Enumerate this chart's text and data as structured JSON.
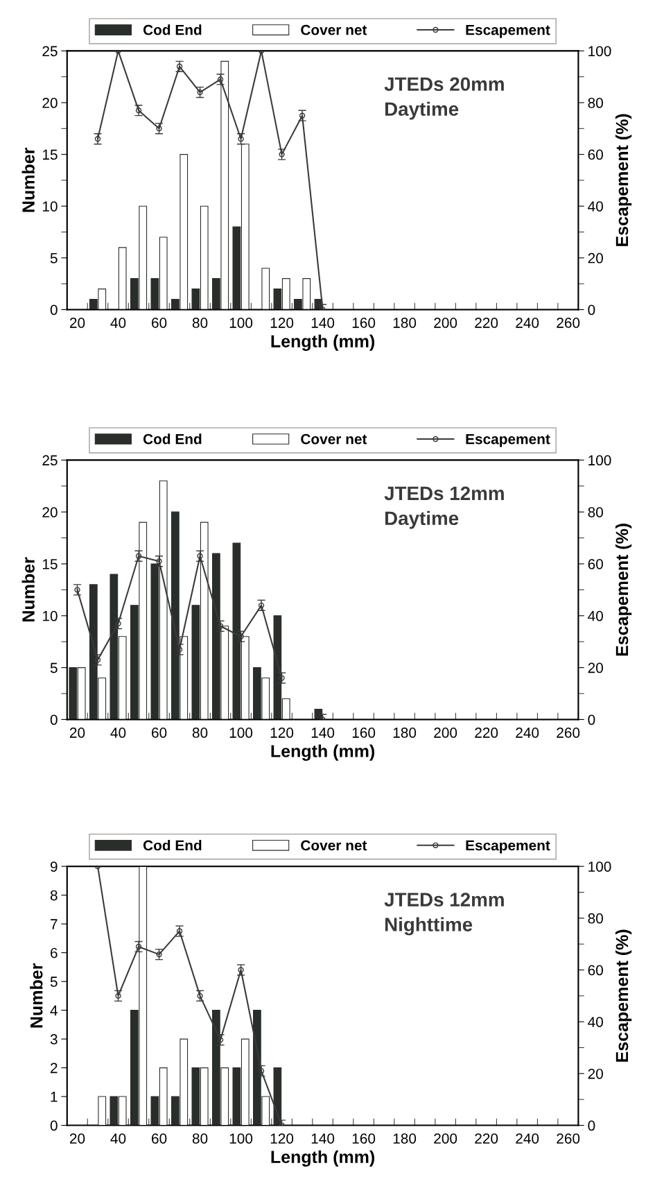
{
  "chart_data": [
    {
      "type": "bar",
      "xlabel": "Length (mm)",
      "ylabel": "Number",
      "y2label": "Escapement (%)",
      "annotations": [
        "JTEDs 20mm\nDaytime"
      ],
      "legend": "top",
      "marker": "circle",
      "line_style": "solid",
      "x": [
        30,
        40,
        50,
        60,
        70,
        80,
        90,
        100,
        110,
        120,
        130,
        140
      ],
      "xlim": [
        15,
        265
      ],
      "xticks": [
        {
          "value": 15,
          "label": null
        },
        20,
        {
          "value": 25,
          "label": null
        },
        {
          "value": 35,
          "label": null
        },
        40,
        {
          "value": 45,
          "label": null
        },
        {
          "value": 55,
          "label": null
        },
        60,
        {
          "value": 65,
          "label": null
        },
        {
          "value": 75,
          "label": null
        },
        80,
        {
          "value": 85,
          "label": null
        },
        {
          "value": 95,
          "label": null
        },
        100,
        {
          "value": 105,
          "label": null
        },
        {
          "value": 115,
          "label": null
        },
        120,
        {
          "value": 125,
          "label": null
        },
        {
          "value": 135,
          "label": null
        },
        140,
        {
          "value": 145,
          "label": null
        },
        {
          "value": 155,
          "label": null
        },
        160,
        {
          "value": 165,
          "label": null
        },
        {
          "value": 175,
          "label": null
        },
        180,
        {
          "value": 185,
          "label": null
        },
        {
          "value": 195,
          "label": null
        },
        200,
        {
          "value": 205,
          "label": null
        },
        {
          "value": 215,
          "label": null
        },
        220,
        {
          "value": 225,
          "label": null
        },
        {
          "value": 235,
          "label": null
        },
        240,
        {
          "value": 245,
          "label": null
        },
        {
          "value": 255,
          "label": null
        },
        260,
        {
          "value": 265,
          "label": null
        }
      ],
      "ylim": [
        0,
        25
      ],
      "yticks": [
        0,
        {
          "value": 2.5,
          "label": null
        },
        5,
        {
          "value": 7.5,
          "label": null
        },
        10,
        {
          "value": 12.5,
          "label": null
        },
        15,
        {
          "value": 17.5,
          "label": null
        },
        20,
        {
          "value": 22.5,
          "label": null
        },
        25
      ],
      "y2lim": [
        0,
        100
      ],
      "y2ticks": [
        0,
        {
          "value": 10,
          "label": null
        },
        20,
        {
          "value": 30,
          "label": null
        },
        40,
        {
          "value": 50,
          "label": null
        },
        60,
        {
          "value": 70,
          "label": null
        },
        80,
        {
          "value": 90,
          "label": null
        },
        100
      ],
      "series": [
        {
          "name": "Cod End",
          "color": "#2a2e2a",
          "values": [
            1,
            null,
            3,
            3,
            1,
            2,
            3,
            8,
            null,
            2,
            1,
            1
          ]
        },
        {
          "name": "Cover net",
          "color": "#ffffff",
          "values": [
            2,
            6,
            10,
            7,
            15,
            10,
            24,
            16,
            4,
            3,
            3,
            null
          ]
        },
        {
          "name": "Escapement",
          "type": "line",
          "axis": "y2",
          "color": "#3a3a3a",
          "values": [
            66,
            100,
            77,
            70,
            94,
            84,
            89,
            66,
            100,
            60,
            75,
            0
          ],
          "errors": [
            2,
            null,
            2,
            2,
            2,
            2,
            2,
            2,
            null,
            2,
            2,
            2
          ]
        }
      ]
    },
    {
      "type": "bar",
      "xlabel": "Length (mm)",
      "ylabel": "Number",
      "y2label": "Escapement (%)",
      "annotations": [
        "JTEDs 12mm\nDaytime"
      ],
      "legend": "top",
      "marker": "circle",
      "line_style": "solid",
      "x": [
        20,
        30,
        40,
        50,
        60,
        70,
        80,
        90,
        100,
        110,
        120,
        130,
        140
      ],
      "xlim": [
        15,
        265
      ],
      "xticks": [
        {
          "value": 15,
          "label": null
        },
        20,
        {
          "value": 25,
          "label": null
        },
        {
          "value": 35,
          "label": null
        },
        40,
        {
          "value": 45,
          "label": null
        },
        {
          "value": 55,
          "label": null
        },
        60,
        {
          "value": 65,
          "label": null
        },
        {
          "value": 75,
          "label": null
        },
        80,
        {
          "value": 85,
          "label": null
        },
        {
          "value": 95,
          "label": null
        },
        100,
        {
          "value": 105,
          "label": null
        },
        {
          "value": 115,
          "label": null
        },
        120,
        {
          "value": 125,
          "label": null
        },
        {
          "value": 135,
          "label": null
        },
        140,
        {
          "value": 145,
          "label": null
        },
        {
          "value": 155,
          "label": null
        },
        160,
        {
          "value": 165,
          "label": null
        },
        {
          "value": 175,
          "label": null
        },
        180,
        {
          "value": 185,
          "label": null
        },
        {
          "value": 195,
          "label": null
        },
        200,
        {
          "value": 205,
          "label": null
        },
        {
          "value": 215,
          "label": null
        },
        220,
        {
          "value": 225,
          "label": null
        },
        {
          "value": 235,
          "label": null
        },
        240,
        {
          "value": 245,
          "label": null
        },
        {
          "value": 255,
          "label": null
        },
        260,
        {
          "value": 265,
          "label": null
        }
      ],
      "ylim": [
        0,
        25
      ],
      "yticks": [
        0,
        {
          "value": 2.5,
          "label": null
        },
        5,
        {
          "value": 7.5,
          "label": null
        },
        10,
        {
          "value": 12.5,
          "label": null
        },
        15,
        {
          "value": 17.5,
          "label": null
        },
        20,
        {
          "value": 22.5,
          "label": null
        },
        25
      ],
      "y2lim": [
        0,
        100
      ],
      "y2ticks": [
        0,
        {
          "value": 10,
          "label": null
        },
        20,
        {
          "value": 30,
          "label": null
        },
        40,
        {
          "value": 50,
          "label": null
        },
        60,
        {
          "value": 70,
          "label": null
        },
        80,
        {
          "value": 90,
          "label": null
        },
        100
      ],
      "series": [
        {
          "name": "Cod End",
          "color": "#2a2e2a",
          "values": [
            5,
            13,
            14,
            11,
            15,
            20,
            11,
            16,
            17,
            5,
            10,
            null,
            1
          ]
        },
        {
          "name": "Cover net",
          "color": "#ffffff",
          "values": [
            5,
            4,
            8,
            19,
            23,
            8,
            19,
            9,
            8,
            4,
            2,
            null,
            null
          ]
        },
        {
          "name": "Escapement",
          "type": "line",
          "axis": "y2",
          "color": "#3a3a3a",
          "values": [
            50,
            23,
            37,
            63,
            61,
            27,
            63,
            36,
            32,
            44,
            16,
            null,
            0
          ],
          "errors": [
            2,
            2,
            2,
            2,
            2,
            2,
            2,
            2,
            2,
            2,
            2,
            null,
            2
          ]
        }
      ]
    },
    {
      "type": "bar",
      "xlabel": "Length (mm)",
      "ylabel": "Number",
      "y2label": "Escapement (%)",
      "annotations": [
        "JTEDs 12mm\nNighttime"
      ],
      "legend": "top",
      "marker": "circle",
      "line_style": "solid",
      "x": [
        30,
        40,
        50,
        60,
        70,
        80,
        90,
        100,
        110,
        120
      ],
      "xlim": [
        15,
        265
      ],
      "xticks": [
        {
          "value": 15,
          "label": null
        },
        20,
        {
          "value": 25,
          "label": null
        },
        {
          "value": 35,
          "label": null
        },
        40,
        {
          "value": 45,
          "label": null
        },
        {
          "value": 55,
          "label": null
        },
        60,
        {
          "value": 65,
          "label": null
        },
        {
          "value": 75,
          "label": null
        },
        80,
        {
          "value": 85,
          "label": null
        },
        {
          "value": 95,
          "label": null
        },
        100,
        {
          "value": 105,
          "label": null
        },
        {
          "value": 115,
          "label": null
        },
        120,
        {
          "value": 125,
          "label": null
        },
        {
          "value": 135,
          "label": null
        },
        140,
        {
          "value": 145,
          "label": null
        },
        {
          "value": 155,
          "label": null
        },
        160,
        {
          "value": 165,
          "label": null
        },
        {
          "value": 175,
          "label": null
        },
        180,
        {
          "value": 185,
          "label": null
        },
        {
          "value": 195,
          "label": null
        },
        200,
        {
          "value": 205,
          "label": null
        },
        {
          "value": 215,
          "label": null
        },
        220,
        {
          "value": 225,
          "label": null
        },
        {
          "value": 235,
          "label": null
        },
        240,
        {
          "value": 245,
          "label": null
        },
        {
          "value": 255,
          "label": null
        },
        260,
        {
          "value": 265,
          "label": null
        }
      ],
      "ylim": [
        0,
        9
      ],
      "yticks": [
        0,
        1,
        2,
        3,
        4,
        5,
        6,
        7,
        8,
        9
      ],
      "y2lim": [
        0,
        100
      ],
      "y2ticks": [
        0,
        {
          "value": 10,
          "label": null
        },
        20,
        {
          "value": 30,
          "label": null
        },
        40,
        {
          "value": 50,
          "label": null
        },
        60,
        {
          "value": 70,
          "label": null
        },
        80,
        {
          "value": 90,
          "label": null
        },
        100
      ],
      "series": [
        {
          "name": "Cod End",
          "color": "#2a2e2a",
          "values": [
            null,
            1,
            4,
            1,
            1,
            2,
            4,
            2,
            4,
            2
          ]
        },
        {
          "name": "Cover net",
          "color": "#ffffff",
          "values": [
            1,
            1,
            9,
            2,
            3,
            2,
            2,
            3,
            1,
            null
          ]
        },
        {
          "name": "Escapement",
          "type": "line",
          "axis": "y2",
          "color": "#3a3a3a",
          "values": [
            100,
            50,
            69,
            66,
            75,
            50,
            33,
            60,
            21,
            0
          ],
          "errors": [
            null,
            2,
            2,
            2,
            2,
            2,
            2,
            2,
            2,
            2
          ]
        }
      ]
    }
  ]
}
